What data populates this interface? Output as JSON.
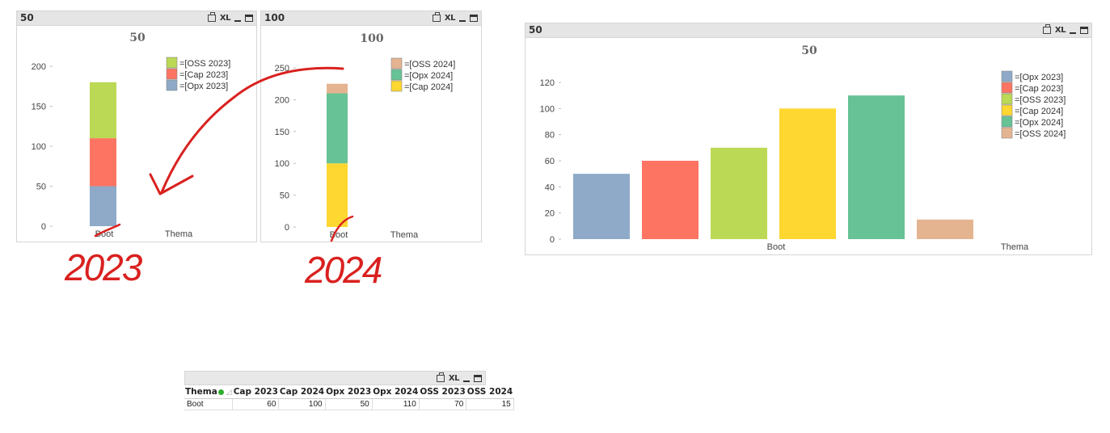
{
  "chart_2023": {
    "caption": "50",
    "title": "50",
    "caption_icons": [
      "print-icon",
      "xl-icon",
      "minimize-icon",
      "maximize-icon"
    ],
    "xl_label": "XL",
    "legend": [
      "=[OSS 2023]",
      "=[Cap 2023]",
      "=[Opx 2023]"
    ],
    "x_labels": [
      "Boot",
      "Thema"
    ],
    "y_ticks": [
      "0",
      "50",
      "100",
      "150",
      "200"
    ]
  },
  "chart_2024": {
    "caption": "100",
    "title": "100",
    "xl_label": "XL",
    "legend": [
      "=[OSS 2024]",
      "=[Opx 2024]",
      "=[Cap 2024]"
    ],
    "x_labels": [
      "Boot",
      "Thema"
    ],
    "y_ticks": [
      "0",
      "50",
      "100",
      "150",
      "200",
      "250"
    ]
  },
  "chart_combined": {
    "caption": "50",
    "title": "50",
    "xl_label": "XL",
    "legend": [
      "=[Opx 2023]",
      "=[Cap 2023]",
      "=[OSS 2023]",
      "=[Cap 2024]",
      "=[Opx 2024]",
      "=[OSS 2024]"
    ],
    "x_labels": [
      "Boot",
      "Thema"
    ],
    "y_ticks": [
      "0",
      "20",
      "40",
      "60",
      "80",
      "100",
      "120"
    ]
  },
  "colors": {
    "opx2023": "#8eaac8",
    "cap2023": "#fd7462",
    "oss2023": "#bcd955",
    "cap2024": "#fed730",
    "opx2024": "#67c295",
    "oss2024": "#e4b491",
    "annotation": "#d9211f"
  },
  "annotations": {
    "label_2023": "2023",
    "label_2024": "2024"
  },
  "table": {
    "xl_label": "XL",
    "headers": [
      "Thema",
      "Cap 2023",
      "Cap 2024",
      "Opx 2023",
      "Opx 2024",
      "OSS 2023",
      "OSS 2024"
    ],
    "rows": [
      [
        "Boot",
        "60",
        "100",
        "50",
        "110",
        "70",
        "15"
      ]
    ]
  },
  "chart_data": [
    {
      "type": "bar",
      "stacked": true,
      "title": "50",
      "categories": [
        "Boot",
        "Thema"
      ],
      "series": [
        {
          "name": "=[Opx 2023]",
          "values": [
            50,
            0
          ]
        },
        {
          "name": "=[Cap 2023]",
          "values": [
            60,
            0
          ]
        },
        {
          "name": "=[OSS 2023]",
          "values": [
            70,
            0
          ]
        }
      ],
      "ylim": [
        0,
        200
      ],
      "legend": "top-right"
    },
    {
      "type": "bar",
      "stacked": true,
      "title": "100",
      "categories": [
        "Boot",
        "Thema"
      ],
      "series": [
        {
          "name": "=[Cap 2024]",
          "values": [
            100,
            0
          ]
        },
        {
          "name": "=[Opx 2024]",
          "values": [
            110,
            0
          ]
        },
        {
          "name": "=[OSS 2024]",
          "values": [
            15,
            0
          ]
        }
      ],
      "ylim": [
        0,
        250
      ],
      "legend": "top-right"
    },
    {
      "type": "bar",
      "stacked": false,
      "title": "50",
      "categories": [
        "Boot",
        "Thema"
      ],
      "series": [
        {
          "name": "=[Opx 2023]",
          "values": [
            50,
            0
          ]
        },
        {
          "name": "=[Cap 2023]",
          "values": [
            60,
            0
          ]
        },
        {
          "name": "=[OSS 2023]",
          "values": [
            70,
            0
          ]
        },
        {
          "name": "=[Cap 2024]",
          "values": [
            100,
            0
          ]
        },
        {
          "name": "=[Opx 2024]",
          "values": [
            110,
            0
          ]
        },
        {
          "name": "=[OSS 2024]",
          "values": [
            15,
            0
          ]
        }
      ],
      "ylim": [
        0,
        120
      ],
      "legend": "top-right"
    }
  ]
}
